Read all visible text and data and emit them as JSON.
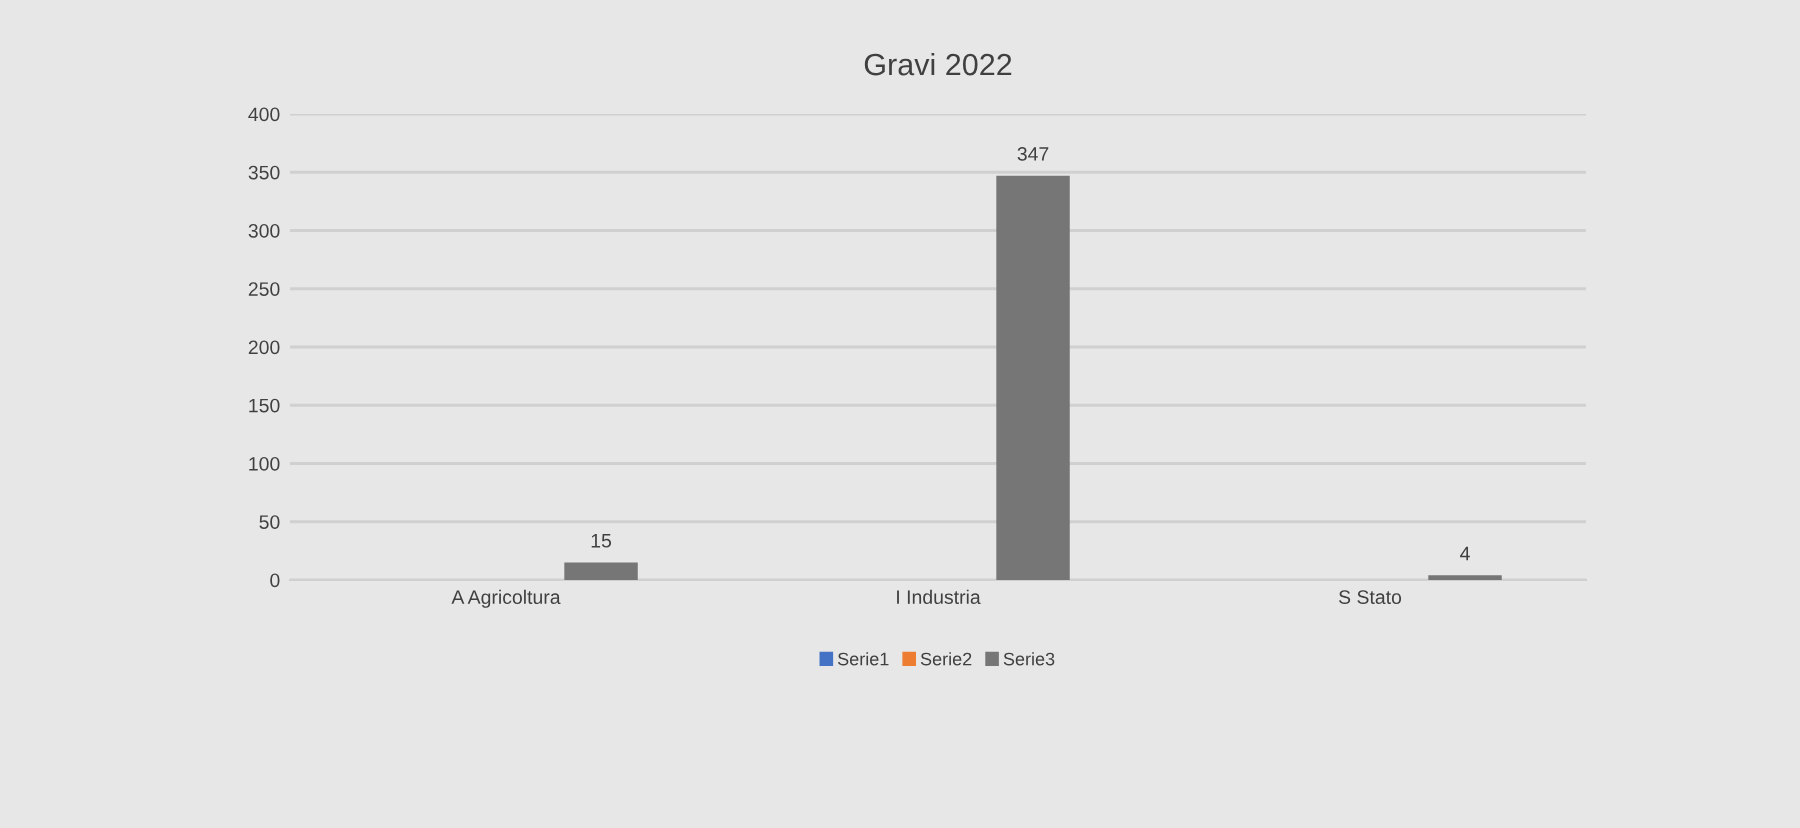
{
  "chart_data": {
    "type": "bar",
    "title": "Gravi 2022",
    "categories": [
      "A Agricoltura",
      "I Industria",
      "S Stato"
    ],
    "series": [
      {
        "name": "Serie1",
        "color": "#4472c4",
        "values": [
          null,
          null,
          null
        ]
      },
      {
        "name": "Serie2",
        "color": "#ed7d31",
        "values": [
          null,
          null,
          null
        ]
      },
      {
        "name": "Serie3",
        "color": "#767676",
        "values": [
          15,
          347,
          4
        ]
      }
    ],
    "ylim": [
      0,
      400
    ],
    "yticks": [
      0,
      50,
      100,
      150,
      200,
      250,
      300,
      350,
      400
    ],
    "grid": "y",
    "legend": "bottom",
    "data_labels": true
  }
}
